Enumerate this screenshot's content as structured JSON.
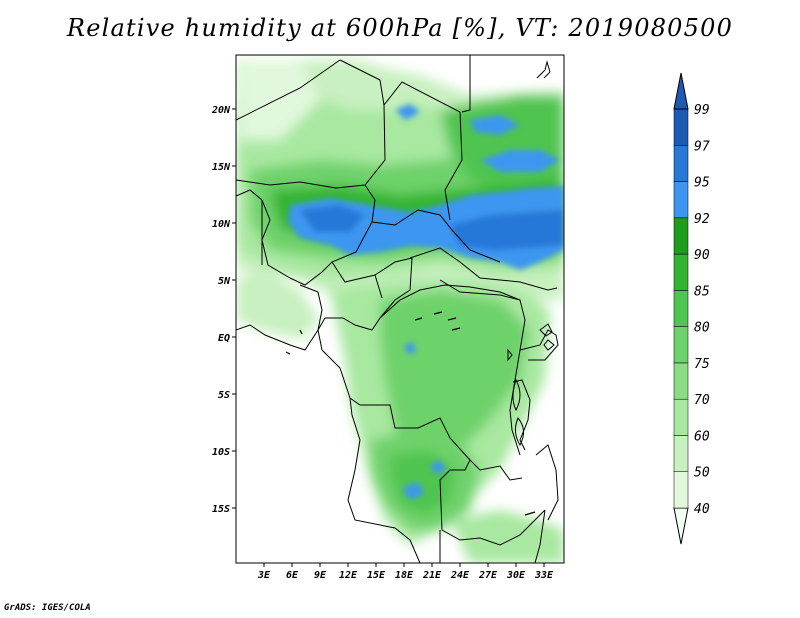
{
  "title": "Relative humidity at 600hPa [%], VT: 2019080500",
  "footer": "GrADS: IGES/COLA",
  "map": {
    "lat_ticks": [
      "20N",
      "15N",
      "10N",
      "5N",
      "EQ",
      "5S",
      "10S",
      "15S"
    ],
    "lon_ticks": [
      "3E",
      "6E",
      "9E",
      "12E",
      "15E",
      "18E",
      "21E",
      "24E",
      "27E",
      "30E",
      "33E"
    ]
  },
  "colorbar": {
    "levels": [
      "40",
      "50",
      "60",
      "70",
      "75",
      "80",
      "85",
      "90",
      "92",
      "95",
      "97",
      "99"
    ],
    "colors": [
      "#f0fff0",
      "#e1f8dc",
      "#c8f0c0",
      "#a8e8a0",
      "#8cdc84",
      "#6ed26a",
      "#50c450",
      "#32b432",
      "#1e9c1e",
      "#3c96f0",
      "#2878d8",
      "#1e5ab4"
    ]
  }
}
